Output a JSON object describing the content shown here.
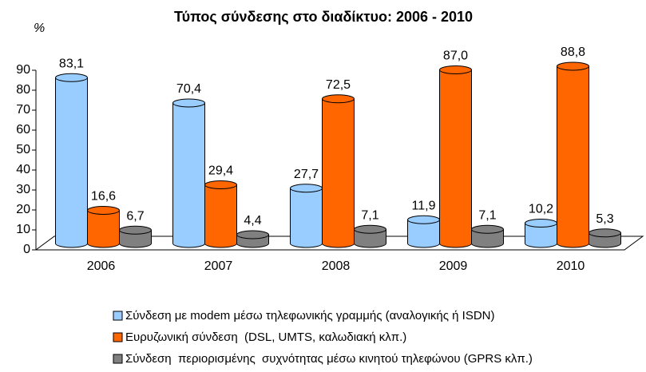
{
  "chart_data": {
    "type": "bar",
    "title": "Τύπος σύνδεσης στο διαδίκτυο: 2006 - 2010",
    "y_label": "%",
    "categories": [
      "2006",
      "2007",
      "2008",
      "2009",
      "2010"
    ],
    "series": [
      {
        "name": "Σύνδεση με modem μέσω τηλεφωνικής γραμμής (αναλογικής ή ISDN)",
        "color": "#99ccff",
        "values": [
          83.1,
          70.4,
          27.7,
          11.9,
          10.2
        ],
        "value_labels": [
          "83,1",
          "70,4",
          "27,7",
          "11,9",
          "10,2"
        ]
      },
      {
        "name": "Ευρυζωνική σύνδεση  (DSL, UMTS, καλωδιακή κλπ.)",
        "color": "#ff6600",
        "values": [
          16.6,
          29.4,
          72.5,
          87,
          88.8
        ],
        "value_labels": [
          "16,6",
          "29,4",
          "72,5",
          "87,0",
          "88,8"
        ]
      },
      {
        "name": "Σύνδεση  περιορισμένης  συχνότητας μέσω κινητού τηλεφώνου (GPRS κλπ.)",
        "color": "#808080",
        "values": [
          6.7,
          4.4,
          7.1,
          7.1,
          5.3
        ],
        "value_labels": [
          "6,7",
          "4,4",
          "7,1",
          "7,1",
          "5,3"
        ]
      }
    ],
    "ylim": [
      0,
      90
    ],
    "yticks": [
      0,
      10,
      20,
      30,
      40,
      50,
      60,
      70,
      80,
      90
    ],
    "legend": "bottom"
  }
}
